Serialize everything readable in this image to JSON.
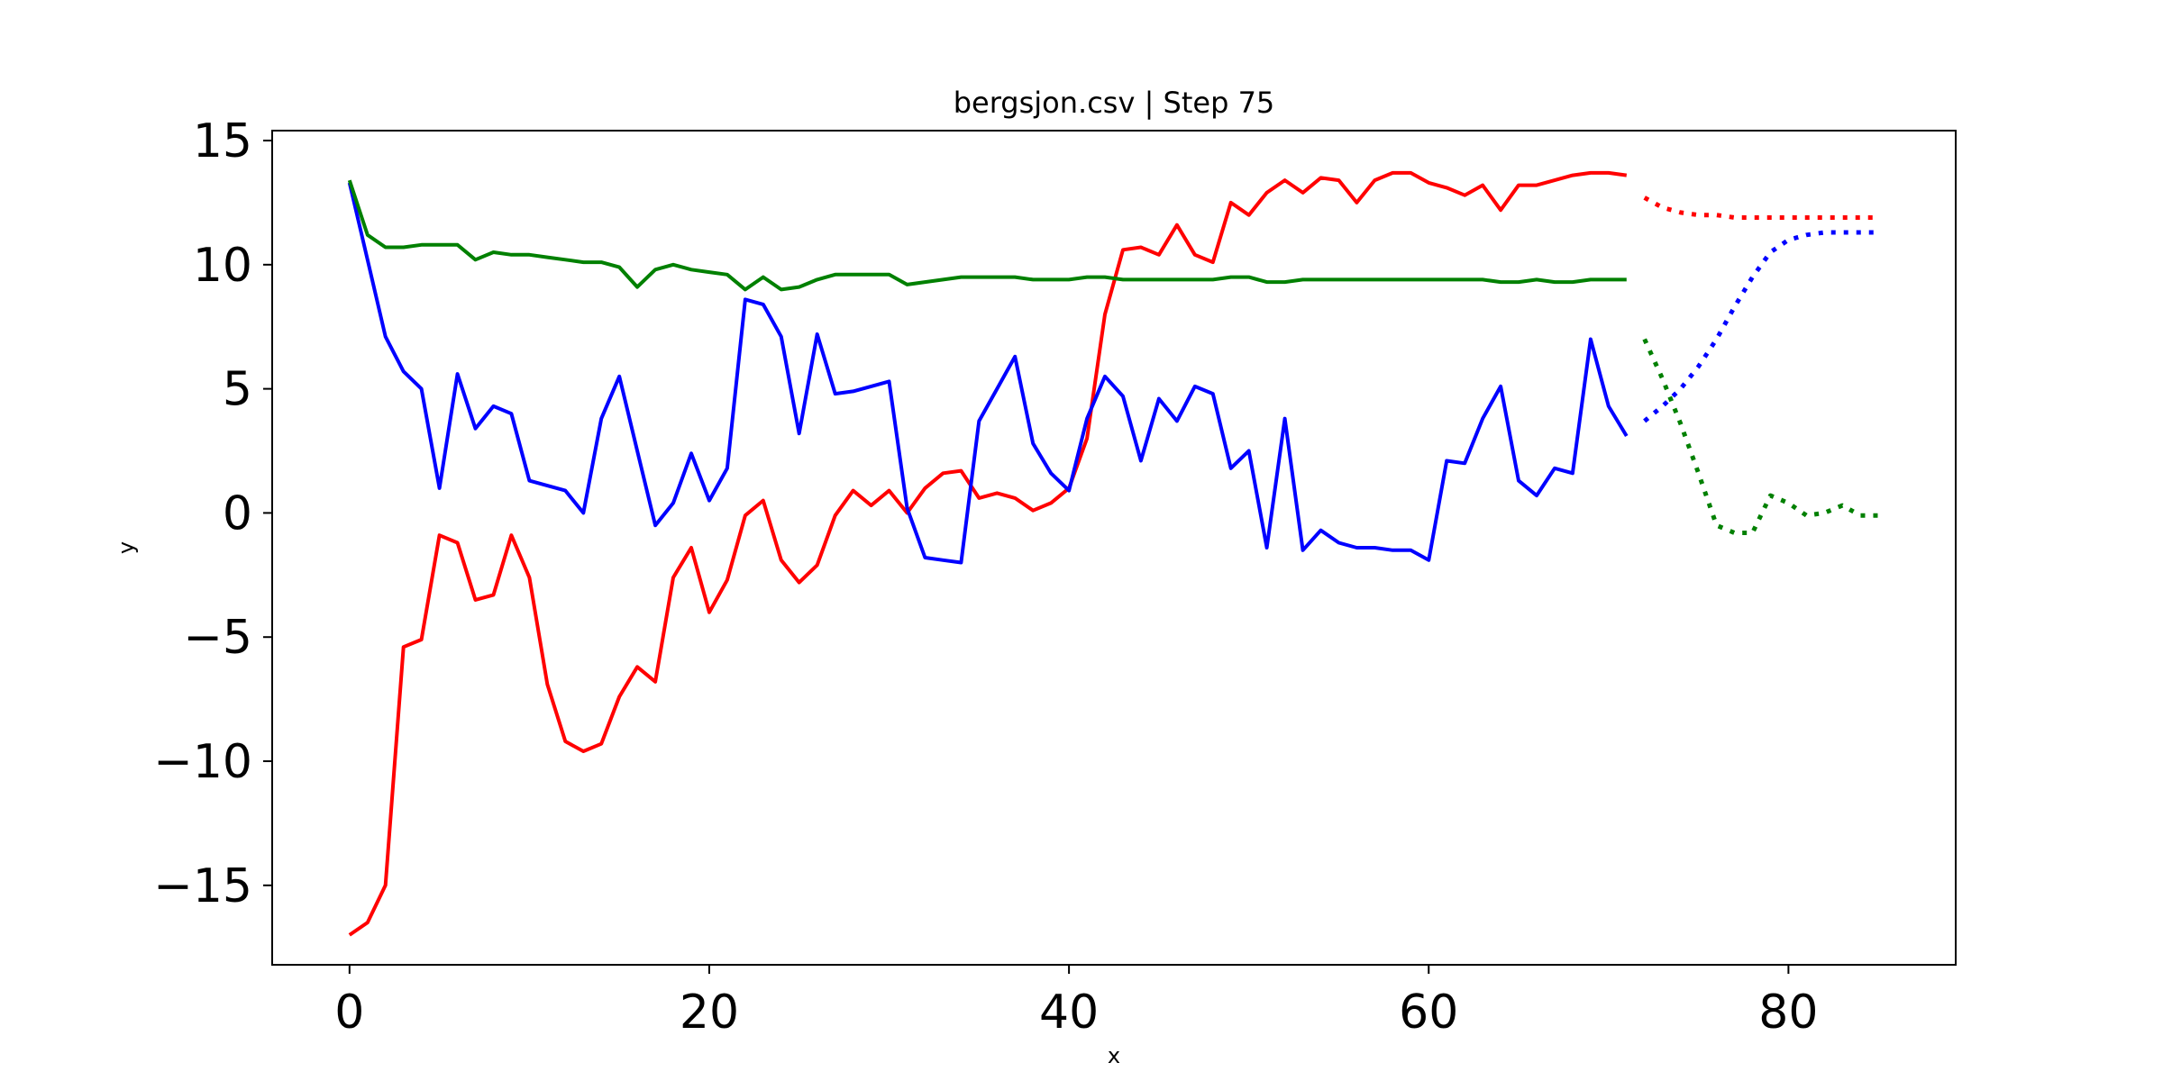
{
  "chart_data": {
    "type": "line",
    "title": "bergsjon.csv | Step 75",
    "xlabel": "x",
    "ylabel": "y",
    "xlim": [
      -4.3,
      89.3
    ],
    "ylim": [
      -18.2,
      15.4
    ],
    "xticks": [
      0,
      20,
      40,
      60,
      80
    ],
    "yticks": [
      15,
      10,
      5,
      0,
      -5,
      -10,
      -15
    ],
    "xtick_labels": [
      "0",
      "20",
      "40",
      "60",
      "80"
    ],
    "ytick_labels": [
      "15",
      "10",
      "5",
      "0",
      "−5",
      "−10",
      "−15"
    ],
    "grid": false,
    "legend": "none",
    "series": [
      {
        "name": "red",
        "color": "#ff0000",
        "style": "solid",
        "x_start": 0,
        "values": [
          -17.0,
          -16.5,
          -15.0,
          -5.4,
          -5.1,
          -0.9,
          -1.2,
          -3.5,
          -3.3,
          -0.9,
          -2.6,
          -6.9,
          -9.2,
          -9.6,
          -9.3,
          -7.4,
          -6.2,
          -6.8,
          -2.6,
          -1.4,
          -4.0,
          -2.7,
          -0.1,
          0.5,
          -1.9,
          -2.8,
          -2.1,
          -0.1,
          0.9,
          0.3,
          0.9,
          0.0,
          1.0,
          1.6,
          1.7,
          0.6,
          0.8,
          0.6,
          0.1,
          0.4,
          1.0,
          3.0,
          8.0,
          10.6,
          10.7,
          10.4,
          11.6,
          10.4,
          10.1,
          12.5,
          12.0,
          12.9,
          13.4,
          12.9,
          13.5,
          13.4,
          12.5,
          13.4,
          13.7,
          13.7,
          13.3,
          13.1,
          12.8,
          13.2,
          12.2,
          13.2,
          13.2,
          13.4,
          13.6,
          13.7,
          13.7,
          13.6
        ]
      },
      {
        "name": "blue",
        "color": "#0000ff",
        "style": "solid",
        "x_start": 0,
        "values": [
          13.3,
          10.2,
          7.1,
          5.7,
          5.0,
          1.0,
          5.6,
          3.4,
          4.3,
          4.0,
          1.3,
          1.1,
          0.9,
          0.0,
          3.8,
          5.5,
          2.5,
          -0.5,
          0.4,
          2.4,
          0.5,
          1.8,
          8.6,
          8.4,
          7.1,
          3.2,
          7.2,
          4.8,
          4.9,
          5.1,
          5.3,
          0.2,
          -1.8,
          -1.9,
          -2.0,
          3.7,
          5.0,
          6.3,
          2.8,
          1.6,
          0.9,
          3.8,
          5.5,
          4.7,
          2.1,
          4.6,
          3.7,
          5.1,
          4.8,
          1.8,
          2.5,
          -1.4,
          3.8,
          -1.5,
          -0.7,
          -1.2,
          -1.4,
          -1.4,
          -1.5,
          -1.5,
          -1.9,
          2.1,
          2.0,
          3.8,
          5.1,
          1.3,
          0.7,
          1.8,
          1.6,
          7.0,
          4.3,
          3.1
        ]
      },
      {
        "name": "green",
        "color": "#008000",
        "style": "solid",
        "x_start": 0,
        "values": [
          13.4,
          11.2,
          10.7,
          10.7,
          10.8,
          10.8,
          10.8,
          10.2,
          10.5,
          10.4,
          10.4,
          10.3,
          10.2,
          10.1,
          10.1,
          9.9,
          9.1,
          9.8,
          10.0,
          9.8,
          9.7,
          9.6,
          9.0,
          9.5,
          9.0,
          9.1,
          9.4,
          9.6,
          9.6,
          9.6,
          9.6,
          9.2,
          9.3,
          9.4,
          9.5,
          9.5,
          9.5,
          9.5,
          9.4,
          9.4,
          9.4,
          9.5,
          9.5,
          9.4,
          9.4,
          9.4,
          9.4,
          9.4,
          9.4,
          9.5,
          9.5,
          9.3,
          9.3,
          9.4,
          9.4,
          9.4,
          9.4,
          9.4,
          9.4,
          9.4,
          9.4,
          9.4,
          9.4,
          9.4,
          9.3,
          9.3,
          9.4,
          9.3,
          9.3,
          9.4,
          9.4,
          9.4
        ]
      },
      {
        "name": "red-forecast",
        "color": "#ff0000",
        "style": "dotted",
        "x_start": 72,
        "values": [
          12.7,
          12.3,
          12.1,
          12.0,
          12.0,
          11.9,
          11.9,
          11.9,
          11.9,
          11.9,
          11.9,
          11.9,
          11.9,
          11.9
        ]
      },
      {
        "name": "blue-forecast",
        "color": "#0000ff",
        "style": "dotted",
        "x_start": 72,
        "values": [
          3.7,
          4.3,
          5.0,
          5.9,
          7.0,
          8.3,
          9.5,
          10.5,
          11.0,
          11.2,
          11.3,
          11.3,
          11.3,
          11.3
        ]
      },
      {
        "name": "green-forecast",
        "color": "#008000",
        "style": "dotted",
        "x_start": 72,
        "values": [
          7.0,
          5.4,
          3.6,
          1.6,
          -0.5,
          -0.8,
          -0.8,
          0.7,
          0.4,
          -0.1,
          0.0,
          0.3,
          -0.1,
          -0.1
        ]
      }
    ]
  }
}
